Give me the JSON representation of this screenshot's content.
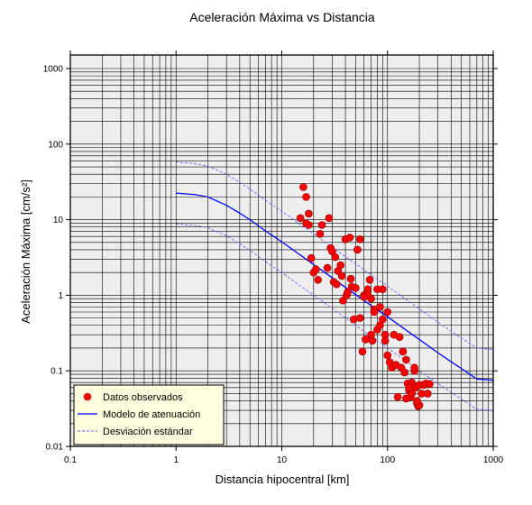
{
  "chart_data": {
    "type": "scatter",
    "title": "Aceleración Máxima vs Distancia",
    "xlabel": "Distancia hipocentral [km]",
    "ylabel": "Aceleración Máxima [cm/s²]",
    "xscale": "log",
    "yscale": "log",
    "xlim": [
      0.1,
      1000
    ],
    "ylim": [
      0.01,
      1500
    ],
    "xticks": [
      {
        "value": 0.1,
        "label": "0.1"
      },
      {
        "value": 1,
        "label": "1"
      },
      {
        "value": 10,
        "label": "10"
      },
      {
        "value": 100,
        "label": "100"
      },
      {
        "value": 1000,
        "label": "1000"
      }
    ],
    "yticks": [
      {
        "value": 0.01,
        "label": "0.01"
      },
      {
        "value": 0.1,
        "label": "0.1"
      },
      {
        "value": 1,
        "label": "1"
      },
      {
        "value": 10,
        "label": "10"
      },
      {
        "value": 100,
        "label": "100"
      },
      {
        "value": 1000,
        "label": "1000"
      }
    ],
    "grid": true,
    "legend_position": "bottom-left",
    "background_color": "#eeeeee",
    "colors": {
      "observed": "#ff0000",
      "observed_edge": "#8b0000",
      "model": "#0000ff",
      "std": "#5555ff"
    },
    "series": [
      {
        "name": "Datos observados",
        "kind": "points",
        "x": [
          16,
          17,
          15,
          18,
          18,
          17,
          19,
          20,
          21,
          22,
          24,
          23,
          27,
          28,
          29,
          30,
          31,
          32,
          33,
          34,
          36,
          37,
          38,
          40,
          41,
          42,
          44,
          45,
          46,
          48,
          50,
          52,
          55,
          58,
          60,
          62,
          65,
          68,
          70,
          72,
          75,
          80,
          85,
          90,
          95,
          100,
          105,
          110,
          115,
          120,
          125,
          130,
          135,
          140,
          145,
          150,
          155,
          160,
          165,
          170,
          175,
          180,
          185,
          190,
          195,
          200,
          210,
          220,
          230,
          240,
          250,
          200,
          190,
          180,
          170,
          160,
          150,
          140,
          100,
          95,
          90,
          85,
          80,
          75,
          70,
          65,
          60,
          55
        ],
        "y": [
          27,
          20,
          10.5,
          12,
          8.5,
          8.9,
          3.1,
          2.0,
          2.2,
          1.6,
          8.5,
          6.5,
          2.3,
          10.5,
          4.2,
          3.8,
          1.5,
          3.2,
          1.4,
          2.1,
          2.5,
          1.8,
          0.85,
          5.5,
          1.0,
          1.1,
          5.8,
          1.65,
          1.3,
          0.48,
          1.25,
          4.0,
          5.5,
          0.18,
          1.0,
          0.26,
          1.2,
          1.6,
          0.9,
          0.25,
          0.65,
          0.35,
          0.4,
          0.48,
          0.3,
          0.16,
          0.13,
          0.11,
          0.3,
          0.12,
          0.045,
          0.28,
          0.11,
          0.18,
          0.095,
          0.043,
          0.068,
          0.055,
          0.045,
          0.07,
          0.06,
          0.1,
          0.06,
          0.037,
          0.034,
          0.065,
          0.05,
          0.065,
          0.068,
          0.05,
          0.067,
          0.035,
          0.04,
          0.11,
          0.05,
          0.06,
          0.14,
          0.18,
          0.6,
          0.25,
          1.2,
          0.7,
          1.2,
          0.6,
          0.3,
          1.0,
          0.95,
          0.5
        ]
      },
      {
        "name": "Modelo de atenuación",
        "kind": "line",
        "dash": "solid",
        "x": [
          1,
          1.5,
          2,
          3,
          4,
          5,
          7,
          10,
          15,
          20,
          30,
          50,
          70,
          100,
          150,
          200,
          300,
          500,
          700,
          1000
        ],
        "y": [
          22.5,
          21.5,
          20,
          15.5,
          12.2,
          10,
          7.1,
          5.1,
          3.4,
          2.55,
          1.7,
          1.02,
          0.73,
          0.52,
          0.345,
          0.26,
          0.173,
          0.107,
          0.078,
          0.075
        ]
      },
      {
        "name": "Desviación estándar",
        "kind": "line",
        "dash": "dashed",
        "x": [
          1,
          1.5,
          2,
          3,
          4,
          5,
          7,
          10,
          15,
          20,
          30,
          50,
          70,
          100,
          150,
          200,
          300,
          500,
          700,
          1000
        ],
        "y": [
          58,
          55,
          51,
          40,
          31,
          25.5,
          18,
          13,
          8.6,
          6.5,
          4.3,
          2.6,
          1.85,
          1.32,
          0.88,
          0.66,
          0.44,
          0.27,
          0.2,
          0.19
        ]
      },
      {
        "name": "",
        "kind": "line",
        "dash": "dashed",
        "legend": false,
        "x": [
          1,
          1.5,
          2,
          3,
          4,
          5,
          7,
          10,
          15,
          20,
          30,
          50,
          70,
          100,
          150,
          200,
          300,
          500,
          700,
          1000
        ],
        "y": [
          8.8,
          8.4,
          7.8,
          6.1,
          4.8,
          3.9,
          2.8,
          2.0,
          1.33,
          1.0,
          0.67,
          0.4,
          0.285,
          0.2,
          0.135,
          0.1,
          0.068,
          0.042,
          0.031,
          0.03
        ]
      }
    ]
  }
}
